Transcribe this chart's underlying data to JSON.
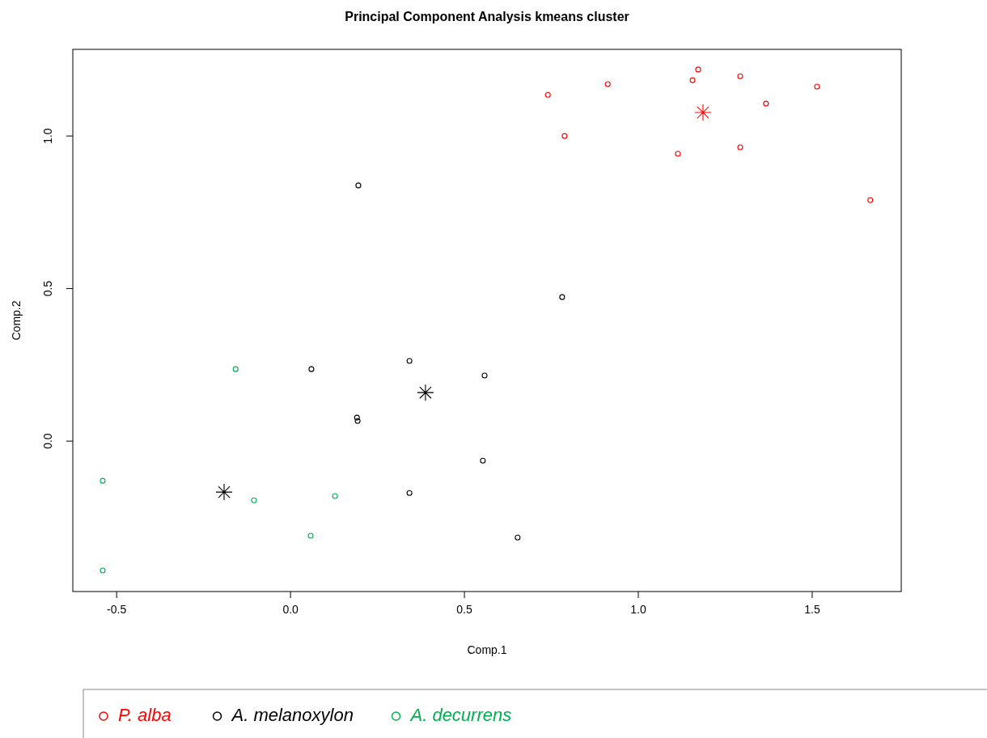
{
  "chart_data": {
    "type": "scatter",
    "title": "Principal Component Analysis kmeans cluster",
    "xlabel": "Comp.1",
    "ylabel": "Comp.2",
    "xlim": [
      -0.626,
      1.756
    ],
    "ylim": [
      -0.493,
      1.284
    ],
    "xticks": [
      -0.5,
      {
        "value": 0,
        "label": "0.0"
      },
      0.5,
      {
        "value": 1,
        "label": "1.0"
      },
      1.5
    ],
    "yticks": [
      {
        "value": 0,
        "label": "0.0"
      },
      0.5,
      {
        "value": 1,
        "label": "1.0"
      }
    ],
    "grid": false,
    "legend": "bottom",
    "marker": "circle",
    "series": [
      {
        "name": "P. alba",
        "color": "#ff0000",
        "x": [
          0.74,
          0.788,
          0.912,
          1.172,
          1.156,
          1.293,
          1.367,
          1.514,
          1.114,
          1.293,
          1.667
        ],
        "values": [
          1.135,
          1.0,
          1.17,
          1.218,
          1.183,
          1.196,
          1.106,
          1.162,
          0.942,
          0.963,
          0.79
        ]
      },
      {
        "name": "A. melanoxylon",
        "color": "#000000",
        "x": [
          0.195,
          0.781,
          0.342,
          0.06,
          0.558,
          0.191,
          0.193,
          0.553,
          0.342,
          0.653
        ],
        "values": [
          0.838,
          0.472,
          0.263,
          0.236,
          0.215,
          0.077,
          0.066,
          -0.064,
          -0.17,
          -0.316
        ]
      },
      {
        "name": "A. decurrens",
        "color": "#00b050",
        "x": [
          -0.158,
          -0.54,
          -0.105,
          0.128,
          0.058,
          -0.54
        ],
        "values": [
          0.236,
          -0.13,
          -0.194,
          -0.18,
          -0.31,
          -0.424
        ]
      },
      {
        "color": "#ff0000",
        "marker": "cross",
        "x": [
          1.186
        ],
        "values": [
          1.077
        ]
      },
      {
        "color": "#000000",
        "marker": "cross",
        "x": [
          0.388,
          -0.191
        ],
        "values": [
          0.159,
          -0.167
        ]
      }
    ]
  }
}
